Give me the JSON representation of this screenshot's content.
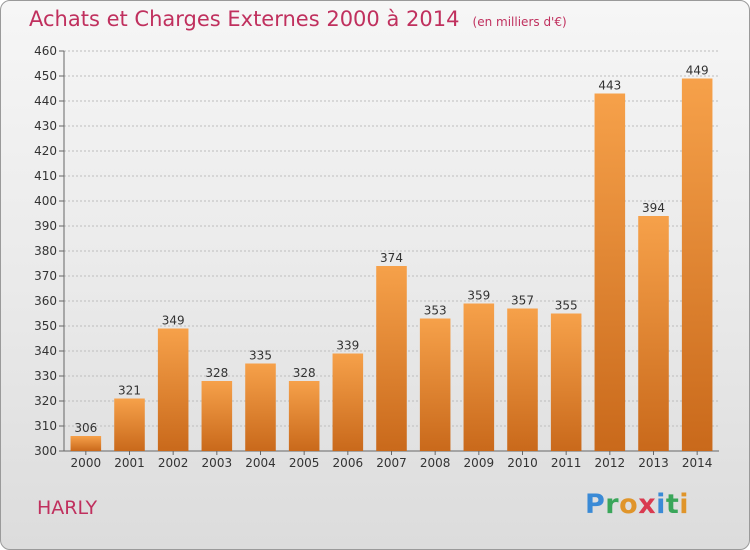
{
  "title": "Achats et Charges Externes 2000 à 2014",
  "unit_label": "(en milliers d'€)",
  "commune": "HARLY",
  "logo": {
    "letters": [
      "P",
      "r",
      "o",
      "x",
      "i",
      "t",
      "i"
    ],
    "colors": [
      "#3a8ad6",
      "#3aa65a",
      "#e0952a",
      "#d93a50",
      "#3a8ad6",
      "#3aa65a",
      "#e0952a"
    ]
  },
  "colors": {
    "accent": "#c0305e",
    "bar_light": "#f6a14a",
    "bar_dark": "#c9691b",
    "grid": "#bdbdbd"
  },
  "chart_data": {
    "type": "bar",
    "title": "Achats et Charges Externes 2000 à 2014",
    "categories": [
      "2000",
      "2001",
      "2002",
      "2003",
      "2004",
      "2005",
      "2006",
      "2007",
      "2008",
      "2009",
      "2010",
      "2011",
      "2012",
      "2013",
      "2014"
    ],
    "values": [
      306,
      321,
      349,
      328,
      335,
      328,
      339,
      374,
      353,
      359,
      357,
      355,
      443,
      394,
      449
    ],
    "ylim": [
      300,
      460
    ],
    "yticks": [
      300,
      310,
      320,
      330,
      340,
      350,
      360,
      370,
      380,
      390,
      400,
      410,
      420,
      430,
      440,
      450,
      460
    ],
    "grid": true,
    "data_labels": true
  }
}
